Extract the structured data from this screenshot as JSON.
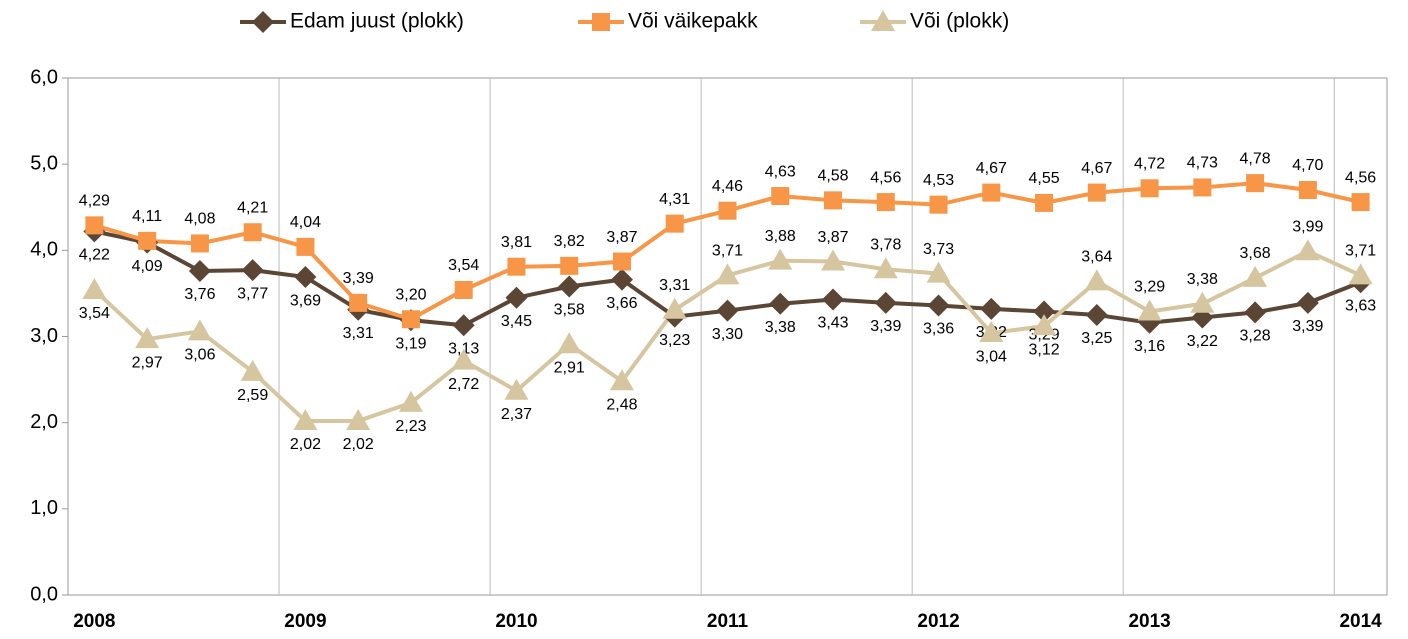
{
  "chart_data": {
    "type": "line",
    "categories": [
      "2008",
      null,
      null,
      null,
      "2009",
      null,
      null,
      null,
      "2010",
      null,
      null,
      null,
      "2011",
      null,
      null,
      null,
      "2012",
      null,
      null,
      null,
      "2013",
      null,
      null,
      null,
      "2014"
    ],
    "ylim": [
      0,
      6
    ],
    "yticks": [
      {
        "value": 0,
        "label": "0,0"
      },
      {
        "value": 1,
        "label": "1,0"
      },
      {
        "value": 2,
        "label": "2,0"
      },
      {
        "value": 3,
        "label": "3,0"
      },
      {
        "value": 4,
        "label": "4,0"
      },
      {
        "value": 5,
        "label": "5,0"
      },
      {
        "value": 6,
        "label": "6,0"
      }
    ],
    "grid": true,
    "legend": "top",
    "series": [
      {
        "name": "Edam juust (plokk)",
        "color": "#5b4636",
        "marker": "diamond",
        "values": [
          4.22,
          4.09,
          3.76,
          3.77,
          3.69,
          3.31,
          3.19,
          3.13,
          3.45,
          3.58,
          3.66,
          3.23,
          3.3,
          3.38,
          3.43,
          3.39,
          3.36,
          3.32,
          3.29,
          3.25,
          3.16,
          3.22,
          3.28,
          3.39,
          3.63
        ],
        "value_labels": [
          "4,22",
          "4,09",
          "3,76",
          "3,77",
          "3,69",
          "3,31",
          "3,19",
          "3,13",
          "3,45",
          "3,58",
          "3,66",
          "3,23",
          "3,30",
          "3,38",
          "3,43",
          "3,39",
          "3,36",
          "3,32",
          "3,29",
          "3,25",
          "3,16",
          "3,22",
          "3,28",
          "3,39",
          "3,63"
        ]
      },
      {
        "name": "Või väikepakk",
        "color": "#f79646",
        "marker": "square",
        "values": [
          4.29,
          4.11,
          4.08,
          4.21,
          4.04,
          3.39,
          3.2,
          3.54,
          3.81,
          3.82,
          3.87,
          4.31,
          4.46,
          4.63,
          4.58,
          4.56,
          4.53,
          4.67,
          4.55,
          4.67,
          4.72,
          4.73,
          4.78,
          4.7,
          4.56
        ],
        "value_labels": [
          "4,29",
          "4,11",
          "4,08",
          "4,21",
          "4,04",
          "3,39",
          "3,20",
          "3,54",
          "3,81",
          "3,82",
          "3,87",
          "4,31",
          "4,46",
          "4,63",
          "4,58",
          "4,56",
          "4,53",
          "4,67",
          "4,55",
          "4,67",
          "4,72",
          "4,73",
          "4,78",
          "4,70",
          "4,56"
        ]
      },
      {
        "name": "Või (plokk)",
        "color": "#d5c6a0",
        "marker": "triangle",
        "values": [
          3.54,
          2.97,
          3.06,
          2.59,
          2.02,
          2.02,
          2.23,
          2.72,
          2.37,
          2.91,
          2.48,
          3.31,
          3.71,
          3.88,
          3.87,
          3.78,
          3.73,
          3.04,
          3.12,
          3.64,
          3.29,
          3.38,
          3.68,
          3.99,
          3.71
        ],
        "value_labels": [
          "3,54",
          "2,97",
          "3,06",
          "2,59",
          "2,02",
          "2,02",
          "2,23",
          "2,72",
          "2,37",
          "2,91",
          "2,48",
          "3,31",
          "3,71",
          "3,88",
          "3,87",
          "3,78",
          "3,73",
          "3,04",
          "3,12",
          "3,64",
          "3,29",
          "3,38",
          "3,68",
          "3,99",
          "3,71"
        ]
      }
    ]
  }
}
